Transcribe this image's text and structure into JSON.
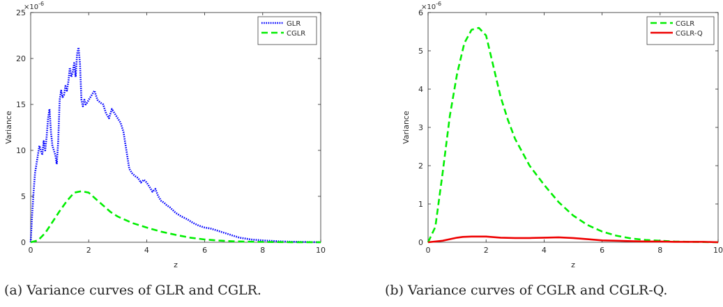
{
  "chart_data": [
    {
      "type": "line",
      "caption": "(a) Variance curves of GLR and CGLR.",
      "xlabel": "z",
      "ylabel": "Variance",
      "exponent_label": "×10",
      "exponent_power": "-6",
      "xlim": [
        0,
        10
      ],
      "ylim": [
        0,
        25
      ],
      "xticks": [
        0,
        2,
        4,
        6,
        8,
        10
      ],
      "yticks": [
        0,
        5,
        10,
        15,
        20,
        25
      ],
      "legend_position": "top-right",
      "grid": false,
      "series": [
        {
          "name": "GLR",
          "color": "#0000ff",
          "style": "dotted",
          "x": [
            0,
            0.05,
            0.1,
            0.15,
            0.2,
            0.25,
            0.3,
            0.35,
            0.4,
            0.45,
            0.5,
            0.55,
            0.6,
            0.65,
            0.7,
            0.75,
            0.8,
            0.85,
            0.9,
            0.95,
            1.0,
            1.05,
            1.1,
            1.15,
            1.2,
            1.25,
            1.3,
            1.35,
            1.4,
            1.45,
            1.5,
            1.55,
            1.6,
            1.65,
            1.7,
            1.75,
            1.8,
            1.85,
            1.9,
            1.95,
            2.0,
            2.1,
            2.2,
            2.3,
            2.4,
            2.5,
            2.6,
            2.7,
            2.8,
            2.9,
            3.0,
            3.1,
            3.2,
            3.3,
            3.4,
            3.5,
            3.6,
            3.7,
            3.8,
            3.9,
            4.0,
            4.1,
            4.2,
            4.3,
            4.4,
            4.5,
            4.6,
            4.7,
            4.8,
            4.9,
            5.0,
            5.2,
            5.4,
            5.6,
            5.8,
            6.0,
            6.2,
            6.4,
            6.6,
            6.8,
            7.0,
            7.2,
            7.4,
            7.6,
            7.8,
            8.0,
            8.3,
            8.6,
            9.0,
            9.5,
            10.0
          ],
          "values": [
            0,
            3.0,
            5.5,
            7.5,
            8.5,
            9.5,
            10.5,
            10.0,
            9.5,
            11.0,
            10.0,
            11.5,
            13.5,
            14.5,
            12.0,
            10.5,
            10.0,
            9.5,
            8.5,
            11.0,
            15.5,
            16.5,
            15.8,
            16.0,
            17.0,
            16.5,
            17.5,
            19.0,
            18.0,
            18.5,
            19.5,
            18.0,
            20.5,
            21.2,
            19.5,
            15.5,
            14.8,
            15.5,
            15.0,
            15.2,
            15.5,
            16.0,
            16.5,
            15.5,
            15.2,
            15.0,
            14.0,
            13.5,
            14.5,
            14.0,
            13.5,
            13.0,
            12.0,
            10.0,
            8.0,
            7.5,
            7.2,
            7.0,
            6.5,
            6.8,
            6.5,
            6.0,
            5.5,
            5.8,
            5.0,
            4.5,
            4.3,
            4.0,
            3.8,
            3.5,
            3.2,
            2.8,
            2.5,
            2.1,
            1.8,
            1.6,
            1.5,
            1.3,
            1.1,
            0.9,
            0.7,
            0.5,
            0.4,
            0.3,
            0.25,
            0.2,
            0.15,
            0.1,
            0.05,
            0.03,
            0
          ]
        },
        {
          "name": "CGLR",
          "color": "#00ee00",
          "style": "dashed",
          "x": [
            0,
            0.25,
            0.5,
            0.75,
            1.0,
            1.25,
            1.5,
            1.75,
            2.0,
            2.25,
            2.5,
            2.75,
            3.0,
            3.5,
            4.0,
            4.5,
            5.0,
            5.5,
            6.0,
            6.5,
            7.0,
            7.5,
            8.0,
            8.5,
            9.0,
            9.5,
            10.0
          ],
          "values": [
            0,
            0.2,
            1.0,
            2.2,
            3.4,
            4.5,
            5.4,
            5.55,
            5.4,
            4.7,
            4.0,
            3.3,
            2.8,
            2.1,
            1.6,
            1.15,
            0.8,
            0.5,
            0.3,
            0.18,
            0.1,
            0.06,
            0.04,
            0.02,
            0.01,
            0.005,
            0
          ]
        }
      ]
    },
    {
      "type": "line",
      "caption": "(b) Variance curves of CGLR and CGLR-Q.",
      "xlabel": "z",
      "ylabel": "Variance",
      "exponent_label": "×10",
      "exponent_power": "-6",
      "xlim": [
        0,
        10
      ],
      "ylim": [
        0,
        6
      ],
      "xticks": [
        0,
        2,
        4,
        6,
        8,
        10
      ],
      "yticks": [
        0,
        1,
        2,
        3,
        4,
        5,
        6
      ],
      "legend_position": "top-right",
      "grid": false,
      "series": [
        {
          "name": "CGLR",
          "color": "#00ee00",
          "style": "dashed",
          "x": [
            0,
            0.25,
            0.5,
            0.75,
            1.0,
            1.25,
            1.5,
            1.75,
            2.0,
            2.25,
            2.5,
            2.75,
            3.0,
            3.5,
            4.0,
            4.5,
            5.0,
            5.5,
            6.0,
            6.5,
            7.0,
            7.5,
            8.0,
            8.5,
            9.0,
            9.5,
            10.0
          ],
          "values": [
            0,
            0.4,
            1.8,
            3.3,
            4.4,
            5.2,
            5.55,
            5.6,
            5.4,
            4.6,
            3.8,
            3.2,
            2.7,
            2.0,
            1.5,
            1.05,
            0.7,
            0.45,
            0.28,
            0.17,
            0.1,
            0.06,
            0.04,
            0.02,
            0.01,
            0.005,
            0
          ]
        },
        {
          "name": "CGLR-Q",
          "color": "#ee0000",
          "style": "solid",
          "x": [
            0,
            0.5,
            0.8,
            1.0,
            1.2,
            1.5,
            2.0,
            2.5,
            3.0,
            3.5,
            4.0,
            4.5,
            5.0,
            5.5,
            6.0,
            6.5,
            7.0,
            7.5,
            8.0,
            8.5,
            9.0,
            9.5,
            10.0
          ],
          "values": [
            0,
            0.04,
            0.09,
            0.12,
            0.14,
            0.15,
            0.15,
            0.12,
            0.11,
            0.11,
            0.12,
            0.13,
            0.11,
            0.08,
            0.05,
            0.04,
            0.03,
            0.02,
            0.02,
            0.01,
            0.01,
            0.01,
            0
          ]
        }
      ]
    }
  ]
}
